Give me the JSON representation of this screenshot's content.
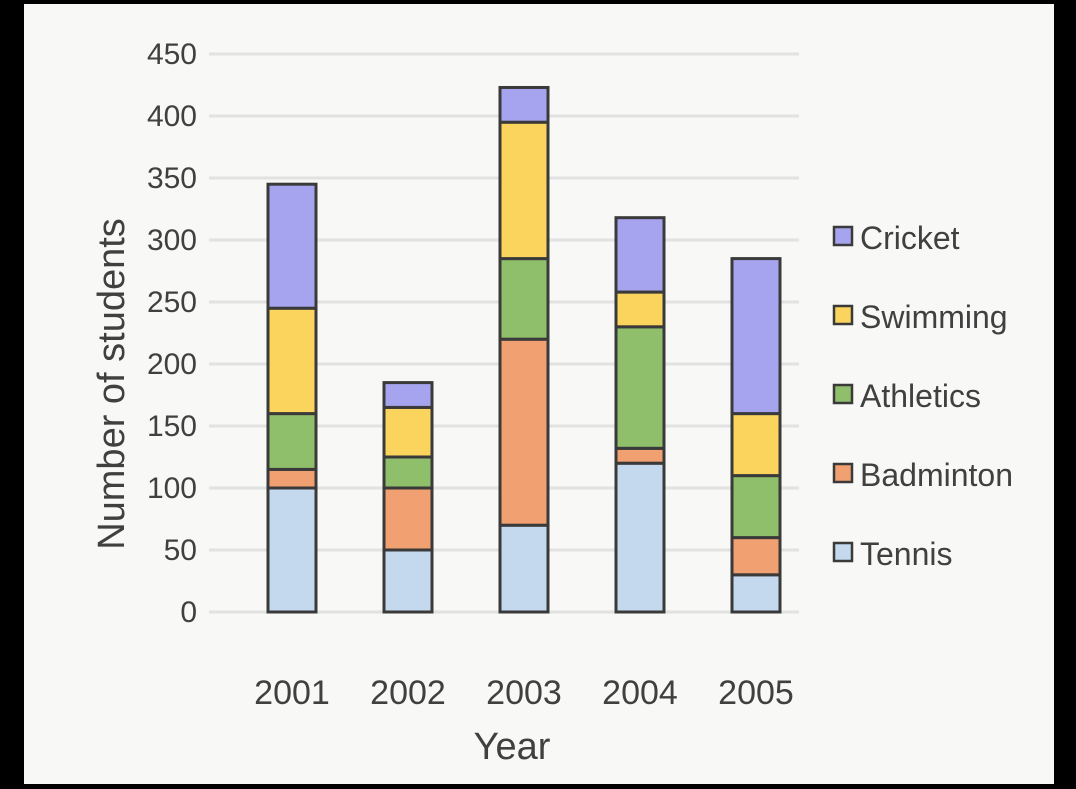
{
  "chart_data": {
    "type": "bar",
    "stacked": true,
    "title": "",
    "xlabel": "Year",
    "ylabel": "Number of students",
    "ylim": [
      0,
      450
    ],
    "yticks": [
      0,
      50,
      100,
      150,
      200,
      250,
      300,
      350,
      400,
      450
    ],
    "grid": true,
    "legend_position": "right",
    "categories": [
      "2001",
      "2002",
      "2003",
      "2004",
      "2005"
    ],
    "series": [
      {
        "name": "Tennis",
        "color": "#c5d9ee",
        "values": [
          100,
          50,
          70,
          120,
          30
        ]
      },
      {
        "name": "Badminton",
        "color": "#f0a071",
        "values": [
          15,
          50,
          150,
          12,
          30
        ]
      },
      {
        "name": "Athletics",
        "color": "#8fbf6a",
        "values": [
          45,
          25,
          65,
          98,
          50
        ]
      },
      {
        "name": "Swimming",
        "color": "#fbd45d",
        "values": [
          85,
          40,
          110,
          28,
          50
        ]
      },
      {
        "name": "Cricket",
        "color": "#a7a4ef",
        "values": [
          100,
          20,
          28,
          60,
          125
        ]
      }
    ]
  }
}
